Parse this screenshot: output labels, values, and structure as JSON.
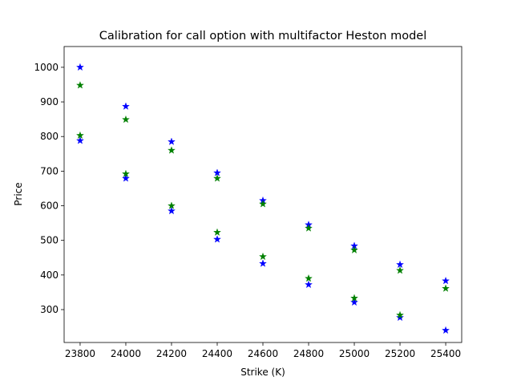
{
  "chart_data": {
    "type": "scatter",
    "title": "Calibration for call option with multifactor Heston model",
    "xlabel": "Strike (K)",
    "ylabel": "Price",
    "xlim": [
      23730,
      25470
    ],
    "ylim": [
      205,
      1060
    ],
    "x_ticks": [
      23800,
      24000,
      24200,
      24400,
      24600,
      24800,
      25000,
      25200,
      25400
    ],
    "y_ticks": [
      300,
      400,
      500,
      600,
      700,
      800,
      900,
      1000
    ],
    "marker": "star",
    "grid": false,
    "series": [
      {
        "color": "#0000ff",
        "points": [
          [
            23800,
            1000
          ],
          [
            23800,
            788
          ],
          [
            24000,
            887
          ],
          [
            24000,
            679
          ],
          [
            24200,
            785
          ],
          [
            24200,
            585
          ],
          [
            24400,
            695
          ],
          [
            24400,
            503
          ],
          [
            24600,
            615
          ],
          [
            24600,
            433
          ],
          [
            24800,
            545
          ],
          [
            24800,
            372
          ],
          [
            25000,
            484
          ],
          [
            25000,
            321
          ],
          [
            25200,
            430
          ],
          [
            25200,
            277
          ],
          [
            25400,
            383
          ],
          [
            25400,
            240
          ]
        ]
      },
      {
        "color": "#008000",
        "points": [
          [
            23800,
            948
          ],
          [
            23800,
            803
          ],
          [
            24000,
            849
          ],
          [
            24000,
            692
          ],
          [
            24200,
            760
          ],
          [
            24200,
            600
          ],
          [
            24400,
            679
          ],
          [
            24400,
            523
          ],
          [
            24600,
            605
          ],
          [
            24600,
            453
          ],
          [
            24800,
            535
          ],
          [
            24800,
            390
          ],
          [
            25000,
            472
          ],
          [
            25000,
            333
          ],
          [
            25200,
            413
          ],
          [
            25200,
            284
          ],
          [
            25400,
            361
          ]
        ]
      }
    ]
  }
}
